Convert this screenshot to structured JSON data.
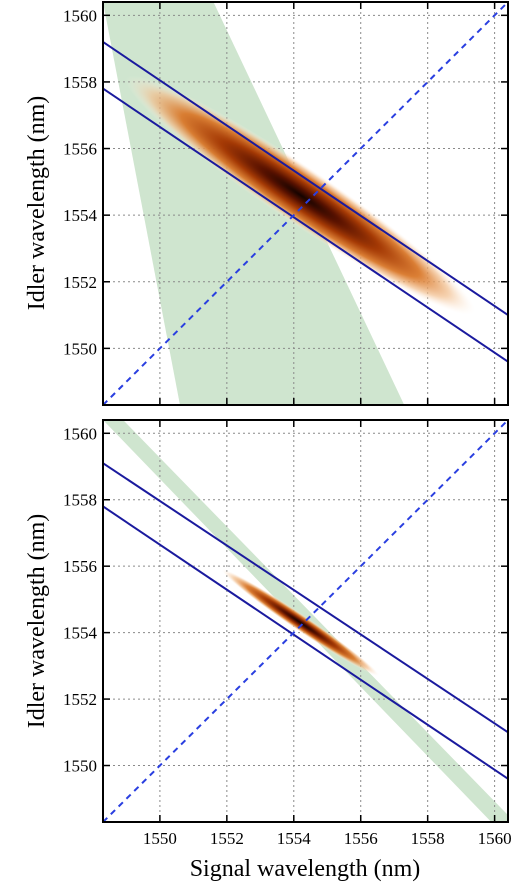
{
  "chart_data": [
    {
      "type": "heatmap",
      "panel": "top",
      "title": "",
      "xlabel": "",
      "ylabel": "Idler wavelength (nm)",
      "xlim": [
        1548.3,
        1560.4
      ],
      "ylim": [
        1548.3,
        1560.4
      ],
      "xticks": [
        1550,
        1552,
        1554,
        1556,
        1558,
        1560
      ],
      "yticks": [
        1550,
        1552,
        1554,
        1556,
        1558,
        1560
      ],
      "xtick_labels_visible": false,
      "grid": true,
      "heatmap_peak": {
        "signal": 1554.2,
        "idler": 1554.6
      },
      "heatmap_color": "#1a0400",
      "green_band": {
        "color": "#cfe5cf",
        "x_at_y_bottom": [
          1550.6,
          1557.3
        ],
        "x_at_y_top": [
          1548.3,
          1551.6
        ]
      },
      "lines": [
        {
          "style": "solid",
          "color": "#1a1a9e",
          "x": [
            1548.3,
            1560.4
          ],
          "y": [
            1559.2,
            1551.0
          ]
        },
        {
          "style": "solid",
          "color": "#1a1a9e",
          "x": [
            1548.3,
            1560.4
          ],
          "y": [
            1557.8,
            1549.6
          ]
        },
        {
          "style": "dashed",
          "color": "#2a3fe0",
          "x": [
            1548.3,
            1560.4
          ],
          "y": [
            1548.3,
            1560.4
          ]
        }
      ]
    },
    {
      "type": "heatmap",
      "panel": "bottom",
      "title": "",
      "xlabel": "Signal wavelength (nm)",
      "ylabel": "Idler wavelength (nm)",
      "xlim": [
        1548.3,
        1560.4
      ],
      "ylim": [
        1548.3,
        1560.4
      ],
      "xticks": [
        1550,
        1552,
        1554,
        1556,
        1558,
        1560
      ],
      "yticks": [
        1550,
        1552,
        1554,
        1556,
        1558,
        1560
      ],
      "xtick_labels_visible": true,
      "grid": true,
      "heatmap_peak": {
        "signal": 1554.2,
        "idler": 1554.3
      },
      "heatmap_color": "#1a0400",
      "green_band": {
        "color": "#cfe5cf",
        "x_at_y_bottom": [
          1559.9,
          1560.6
        ],
        "x_at_y_top": [
          1548.3,
          1548.9
        ]
      },
      "lines": [
        {
          "style": "solid",
          "color": "#1a1a9e",
          "x": [
            1548.3,
            1560.4
          ],
          "y": [
            1559.1,
            1551.0
          ]
        },
        {
          "style": "solid",
          "color": "#1a1a9e",
          "x": [
            1548.3,
            1560.4
          ],
          "y": [
            1557.8,
            1549.6
          ]
        },
        {
          "style": "dashed",
          "color": "#2a3fe0",
          "x": [
            1548.3,
            1560.4
          ],
          "y": [
            1548.3,
            1560.4
          ]
        }
      ]
    }
  ]
}
